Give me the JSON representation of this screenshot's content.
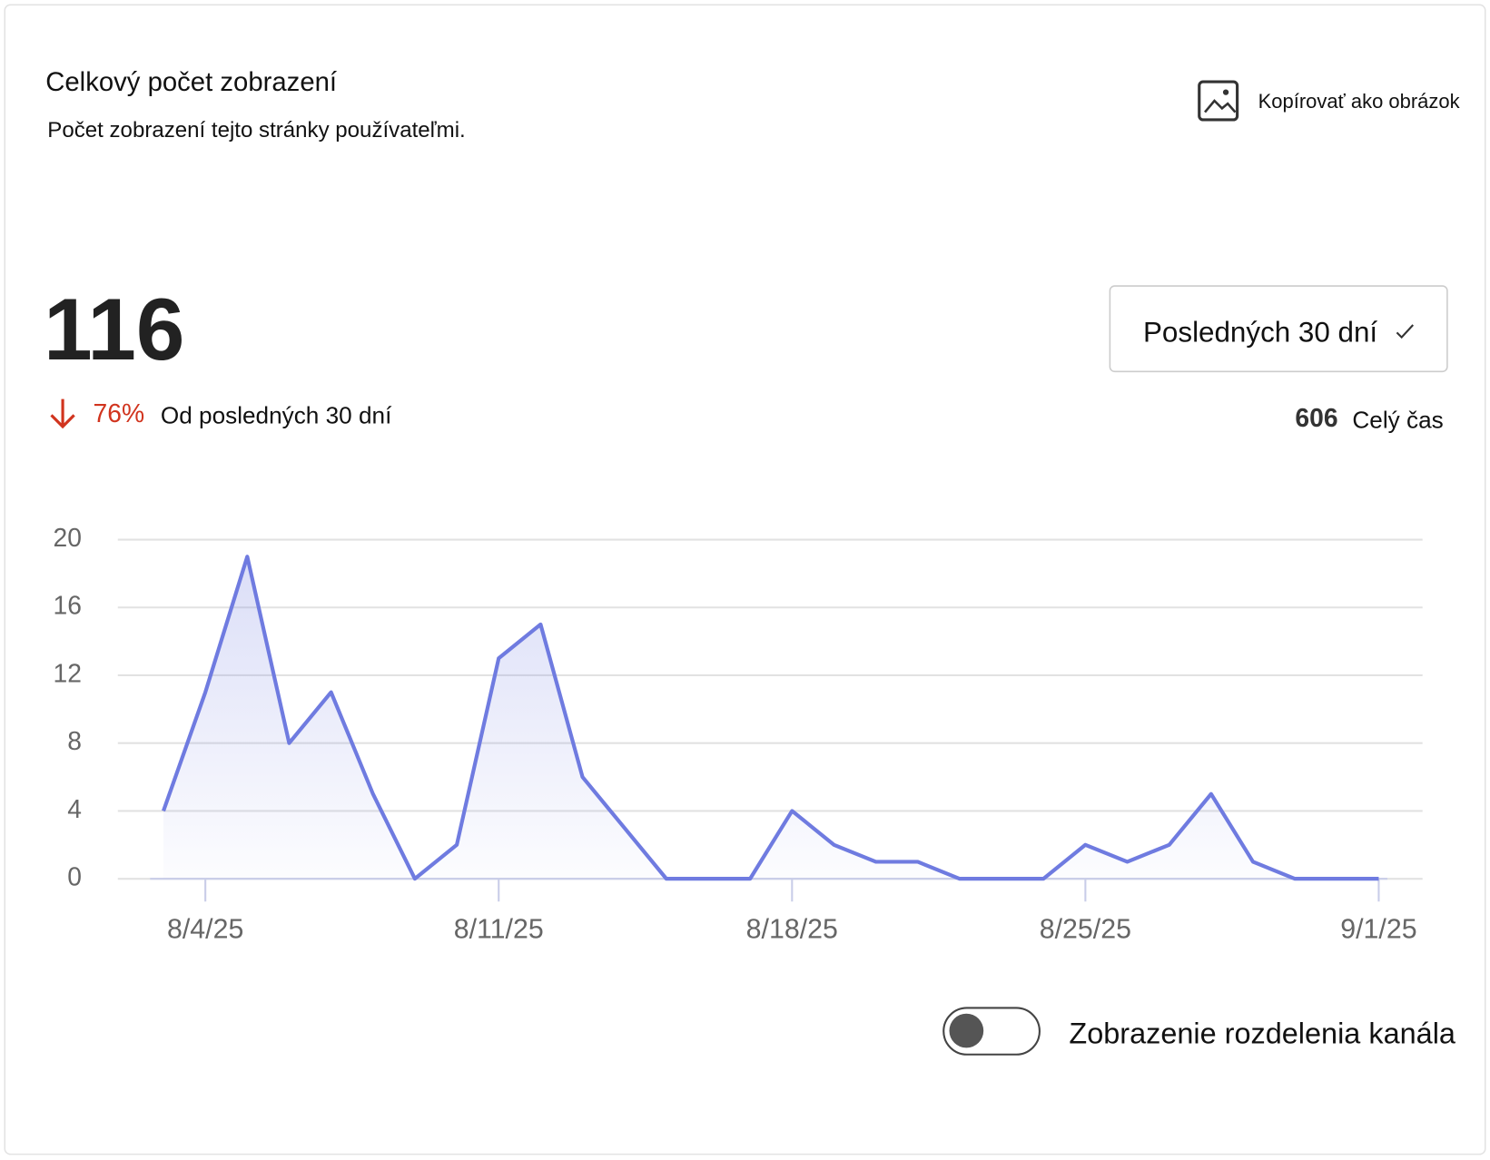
{
  "header": {
    "title": "Celkový počet zobrazení",
    "subtitle": "Počet zobrazení tejto stránky používateľmi.",
    "copy_button": "Kopírovať ako obrázok"
  },
  "summary": {
    "total": 116,
    "change": "76%",
    "change_label": "Od posledných 30 dní",
    "all_time": 606,
    "all_time_label": "Celý čas"
  },
  "period_select": "Posledných 30 dní",
  "toggle_label": "Zobrazenie rozdelenia kanála",
  "chart_data": {
    "type": "line",
    "categories": [
      null,
      "8/4/25",
      null,
      null,
      null,
      null,
      null,
      null,
      "8/11/25",
      null,
      null,
      null,
      null,
      null,
      null,
      "8/18/25",
      null,
      null,
      null,
      null,
      null,
      null,
      "8/25/25",
      null,
      null,
      null,
      null,
      null,
      null,
      "9/1/25"
    ],
    "values": [
      4,
      11,
      19,
      8,
      11,
      5,
      0,
      2,
      13,
      15,
      6,
      3,
      0,
      0,
      0,
      4,
      2,
      1,
      1,
      0,
      0,
      0,
      2,
      1,
      2,
      5,
      1,
      0,
      0,
      0
    ],
    "color": "#6f7be0",
    "ylim": [
      0,
      20
    ],
    "yticks": [
      0,
      4,
      8,
      12,
      16,
      20
    ],
    "grid": true
  }
}
